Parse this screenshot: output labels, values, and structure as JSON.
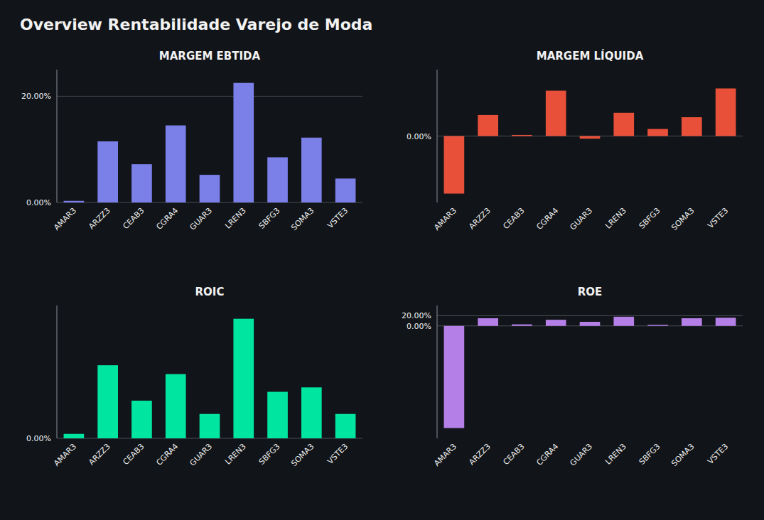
{
  "title": "Overview Rentabilidade Varejo de Moda",
  "chart_data": [
    {
      "type": "bar",
      "title": "MARGEM EBTIDA",
      "categories": [
        "AMAR3",
        "ARZZ3",
        "CEAB3",
        "CGRA4",
        "GUAR3",
        "LREN3",
        "SBFG3",
        "SOMA3",
        "VSTE3"
      ],
      "values": [
        0.3,
        11.5,
        7.2,
        14.5,
        5.2,
        22.5,
        8.5,
        12.2,
        4.5
      ],
      "color": "#7B7FE8",
      "ylim": [
        0,
        25
      ],
      "yticks": [
        {
          "value": 0,
          "label": "0.00%"
        },
        {
          "value": 20,
          "label": "20.00%"
        }
      ],
      "grid": true
    },
    {
      "type": "bar",
      "title": "MARGEM LÍQUIDA",
      "categories": [
        "AMAR3",
        "ARZZ3",
        "CEAB3",
        "CGRA4",
        "GUAR3",
        "LREN3",
        "SBFG3",
        "SOMA3",
        "VSTE3"
      ],
      "values": [
        -26.0,
        9.5,
        0.5,
        20.5,
        -1.2,
        10.5,
        3.2,
        8.5,
        21.5
      ],
      "color": "#E8503A",
      "ylim": [
        -30,
        30
      ],
      "yticks": [
        {
          "value": 0,
          "label": "0.00%"
        }
      ],
      "grid": true
    },
    {
      "type": "bar",
      "title": "ROIC",
      "categories": [
        "AMAR3",
        "ARZZ3",
        "CEAB3",
        "CGRA4",
        "GUAR3",
        "LREN3",
        "SBFG3",
        "SOMA3",
        "VSTE3"
      ],
      "values": [
        1.0,
        16.5,
        8.5,
        14.5,
        5.5,
        27.0,
        10.5,
        11.5,
        5.5
      ],
      "color": "#00E5A0",
      "ylim": [
        0,
        30
      ],
      "yticks": [
        {
          "value": 0,
          "label": "0.00%"
        }
      ],
      "grid": true
    },
    {
      "type": "bar",
      "title": "ROE",
      "categories": [
        "AMAR3",
        "ARZZ3",
        "CEAB3",
        "CGRA4",
        "GUAR3",
        "LREN3",
        "SBFG3",
        "SOMA3",
        "VSTE3"
      ],
      "values": [
        -200.0,
        15.0,
        3.0,
        12.0,
        8.0,
        18.0,
        2.0,
        15.0,
        16.0
      ],
      "color": "#B57FE8",
      "ylim": [
        -220,
        40
      ],
      "yticks": [
        {
          "value": 0,
          "label": "0.00%"
        },
        {
          "value": 20,
          "label": "20.00%"
        }
      ],
      "grid": true
    }
  ]
}
